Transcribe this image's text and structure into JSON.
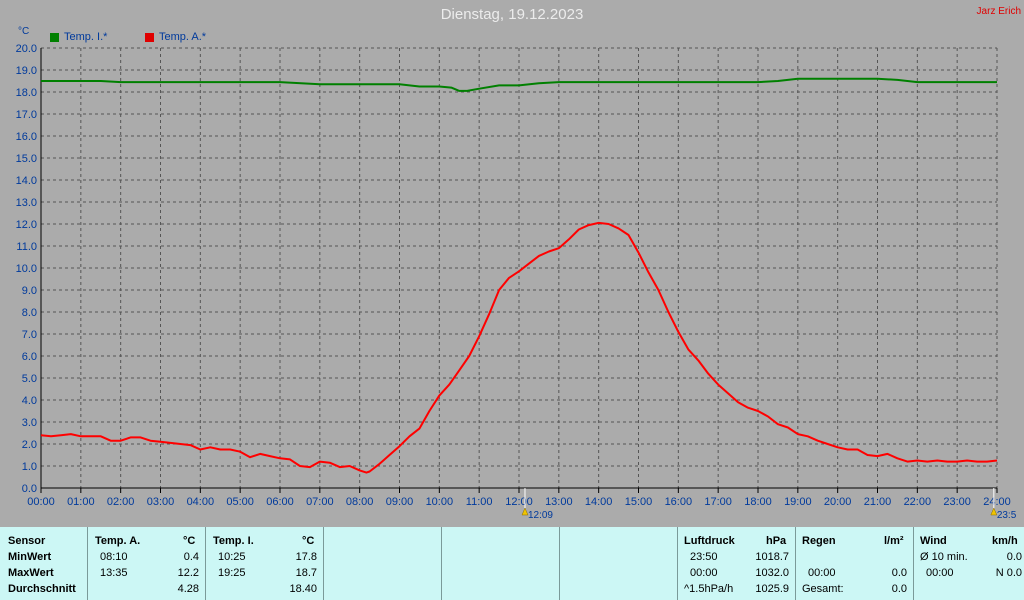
{
  "header": {
    "title": "Dienstag, 19.12.2023",
    "author": "Jarz Erich",
    "unit": "°C"
  },
  "colors": {
    "indoor": "#008000",
    "outdoor": "#ff0000"
  },
  "chart_data": {
    "type": "line",
    "title": "Dienstag, 19.12.2023",
    "ylabel": "°C",
    "ylim": [
      0,
      20
    ],
    "xlim": [
      0,
      24
    ],
    "grid": true,
    "legend_position": "top-left",
    "x_ticks": [
      "00:00",
      "01:00",
      "02:00",
      "03:00",
      "04:00",
      "05:00",
      "06:00",
      "07:00",
      "08:00",
      "09:00",
      "10:00",
      "11:00",
      "12:00",
      "13:00",
      "14:00",
      "15:00",
      "16:00",
      "17:00",
      "18:00",
      "19:00",
      "20:00",
      "21:00",
      "22:00",
      "23:00",
      "24:00"
    ],
    "y_ticks": [
      "0.0",
      "1.0",
      "2.0",
      "3.0",
      "4.0",
      "5.0",
      "6.0",
      "7.0",
      "8.0",
      "9.0",
      "10.0",
      "11.0",
      "12.0",
      "13.0",
      "14.0",
      "15.0",
      "16.0",
      "17.0",
      "18.0",
      "19.0",
      "20.0"
    ],
    "markers": [
      {
        "x": 12.15,
        "label": "12:09"
      },
      {
        "x": 23.92,
        "label": "23:5"
      }
    ],
    "series": [
      {
        "name": "Temp. I.*",
        "color": "#008000",
        "x": [
          0,
          0.5,
          1,
          1.5,
          2,
          3,
          4,
          5,
          6,
          7,
          8,
          9,
          9.5,
          10,
          10.3,
          10.5,
          10.7,
          11,
          11.5,
          12,
          12.5,
          13,
          14,
          15,
          16,
          17,
          18,
          18.5,
          19,
          20,
          20.5,
          21,
          21.5,
          22,
          23,
          24
        ],
        "y": [
          18.5,
          18.5,
          18.5,
          18.5,
          18.45,
          18.45,
          18.45,
          18.45,
          18.45,
          18.35,
          18.35,
          18.35,
          18.25,
          18.25,
          18.2,
          18.05,
          18.05,
          18.15,
          18.3,
          18.3,
          18.4,
          18.45,
          18.45,
          18.45,
          18.45,
          18.45,
          18.45,
          18.5,
          18.6,
          18.6,
          18.6,
          18.6,
          18.55,
          18.45,
          18.45,
          18.45
        ]
      },
      {
        "name": "Temp. A.*",
        "color": "#ff0000",
        "x": [
          0,
          0.25,
          0.5,
          0.75,
          1,
          1.5,
          1.75,
          2,
          2.25,
          2.5,
          2.75,
          3,
          3.5,
          3.75,
          4,
          4.25,
          4.5,
          4.75,
          5,
          5.25,
          5.5,
          5.75,
          6,
          6.25,
          6.5,
          6.75,
          7,
          7.25,
          7.5,
          7.75,
          8,
          8.17,
          8.25,
          8.5,
          8.75,
          9,
          9.25,
          9.5,
          9.75,
          10,
          10.25,
          10.5,
          10.75,
          11,
          11.25,
          11.5,
          11.75,
          12,
          12.25,
          12.5,
          12.75,
          13,
          13.25,
          13.5,
          13.75,
          14,
          14.25,
          14.5,
          14.75,
          15,
          15.25,
          15.5,
          15.75,
          16,
          16.25,
          16.5,
          16.75,
          17,
          17.25,
          17.5,
          17.75,
          18,
          18.25,
          18.5,
          18.75,
          19,
          19.25,
          19.5,
          19.75,
          20,
          20.25,
          20.5,
          20.75,
          21,
          21.25,
          21.5,
          21.75,
          22,
          22.25,
          22.5,
          22.75,
          23,
          23.25,
          23.5,
          23.75,
          24
        ],
        "y": [
          2.4,
          2.35,
          2.4,
          2.45,
          2.35,
          2.35,
          2.15,
          2.15,
          2.3,
          2.3,
          2.15,
          2.1,
          2.0,
          1.95,
          1.75,
          1.85,
          1.75,
          1.75,
          1.65,
          1.4,
          1.55,
          1.45,
          1.35,
          1.3,
          1.0,
          0.95,
          1.2,
          1.15,
          0.95,
          1.0,
          0.8,
          0.7,
          0.75,
          1.1,
          1.5,
          1.9,
          2.35,
          2.7,
          3.5,
          4.2,
          4.7,
          5.35,
          6.0,
          6.9,
          7.9,
          9.0,
          9.55,
          9.85,
          10.2,
          10.55,
          10.75,
          10.9,
          11.3,
          11.75,
          11.95,
          12.05,
          12.0,
          11.8,
          11.5,
          10.7,
          9.8,
          9.0,
          8.0,
          7.1,
          6.3,
          5.8,
          5.2,
          4.7,
          4.3,
          3.9,
          3.65,
          3.5,
          3.25,
          2.9,
          2.75,
          2.45,
          2.35,
          2.15,
          2.0,
          1.85,
          1.75,
          1.75,
          1.5,
          1.45,
          1.55,
          1.35,
          1.2,
          1.25,
          1.2,
          1.25,
          1.2,
          1.2,
          1.25,
          1.2,
          1.2,
          1.25
        ]
      }
    ]
  },
  "table": {
    "sensor": {
      "header": "Sensor",
      "rows": [
        "MinWert",
        "MaxWert",
        "Durchschnitt"
      ]
    },
    "temp_a": {
      "header": "Temp. A.",
      "unit": "°C",
      "times": [
        "08:10",
        "13:35",
        ""
      ],
      "values": [
        "0.4",
        "12.2",
        "4.28"
      ]
    },
    "temp_i": {
      "header": "Temp. I.",
      "unit": "°C",
      "times": [
        "10:25",
        "19:25",
        ""
      ],
      "values": [
        "17.8",
        "18.7",
        "18.40"
      ]
    },
    "luftdruck": {
      "header": "Luftdruck",
      "unit": "hPa",
      "times": [
        "23:50",
        "00:00",
        "^1.5hPa/h"
      ],
      "values": [
        "1018.7",
        "1032.0",
        "1025.9"
      ]
    },
    "regen": {
      "header": "Regen",
      "unit": "l/m²",
      "times": [
        "",
        "00:00",
        "Gesamt:"
      ],
      "values": [
        "",
        "0.0",
        "0.0"
      ]
    },
    "wind": {
      "header": "Wind",
      "unit": "km/h",
      "times": [
        "Ø 10 min.",
        "00:00",
        ""
      ],
      "values": [
        "0.0",
        "N 0.0",
        ""
      ]
    }
  }
}
